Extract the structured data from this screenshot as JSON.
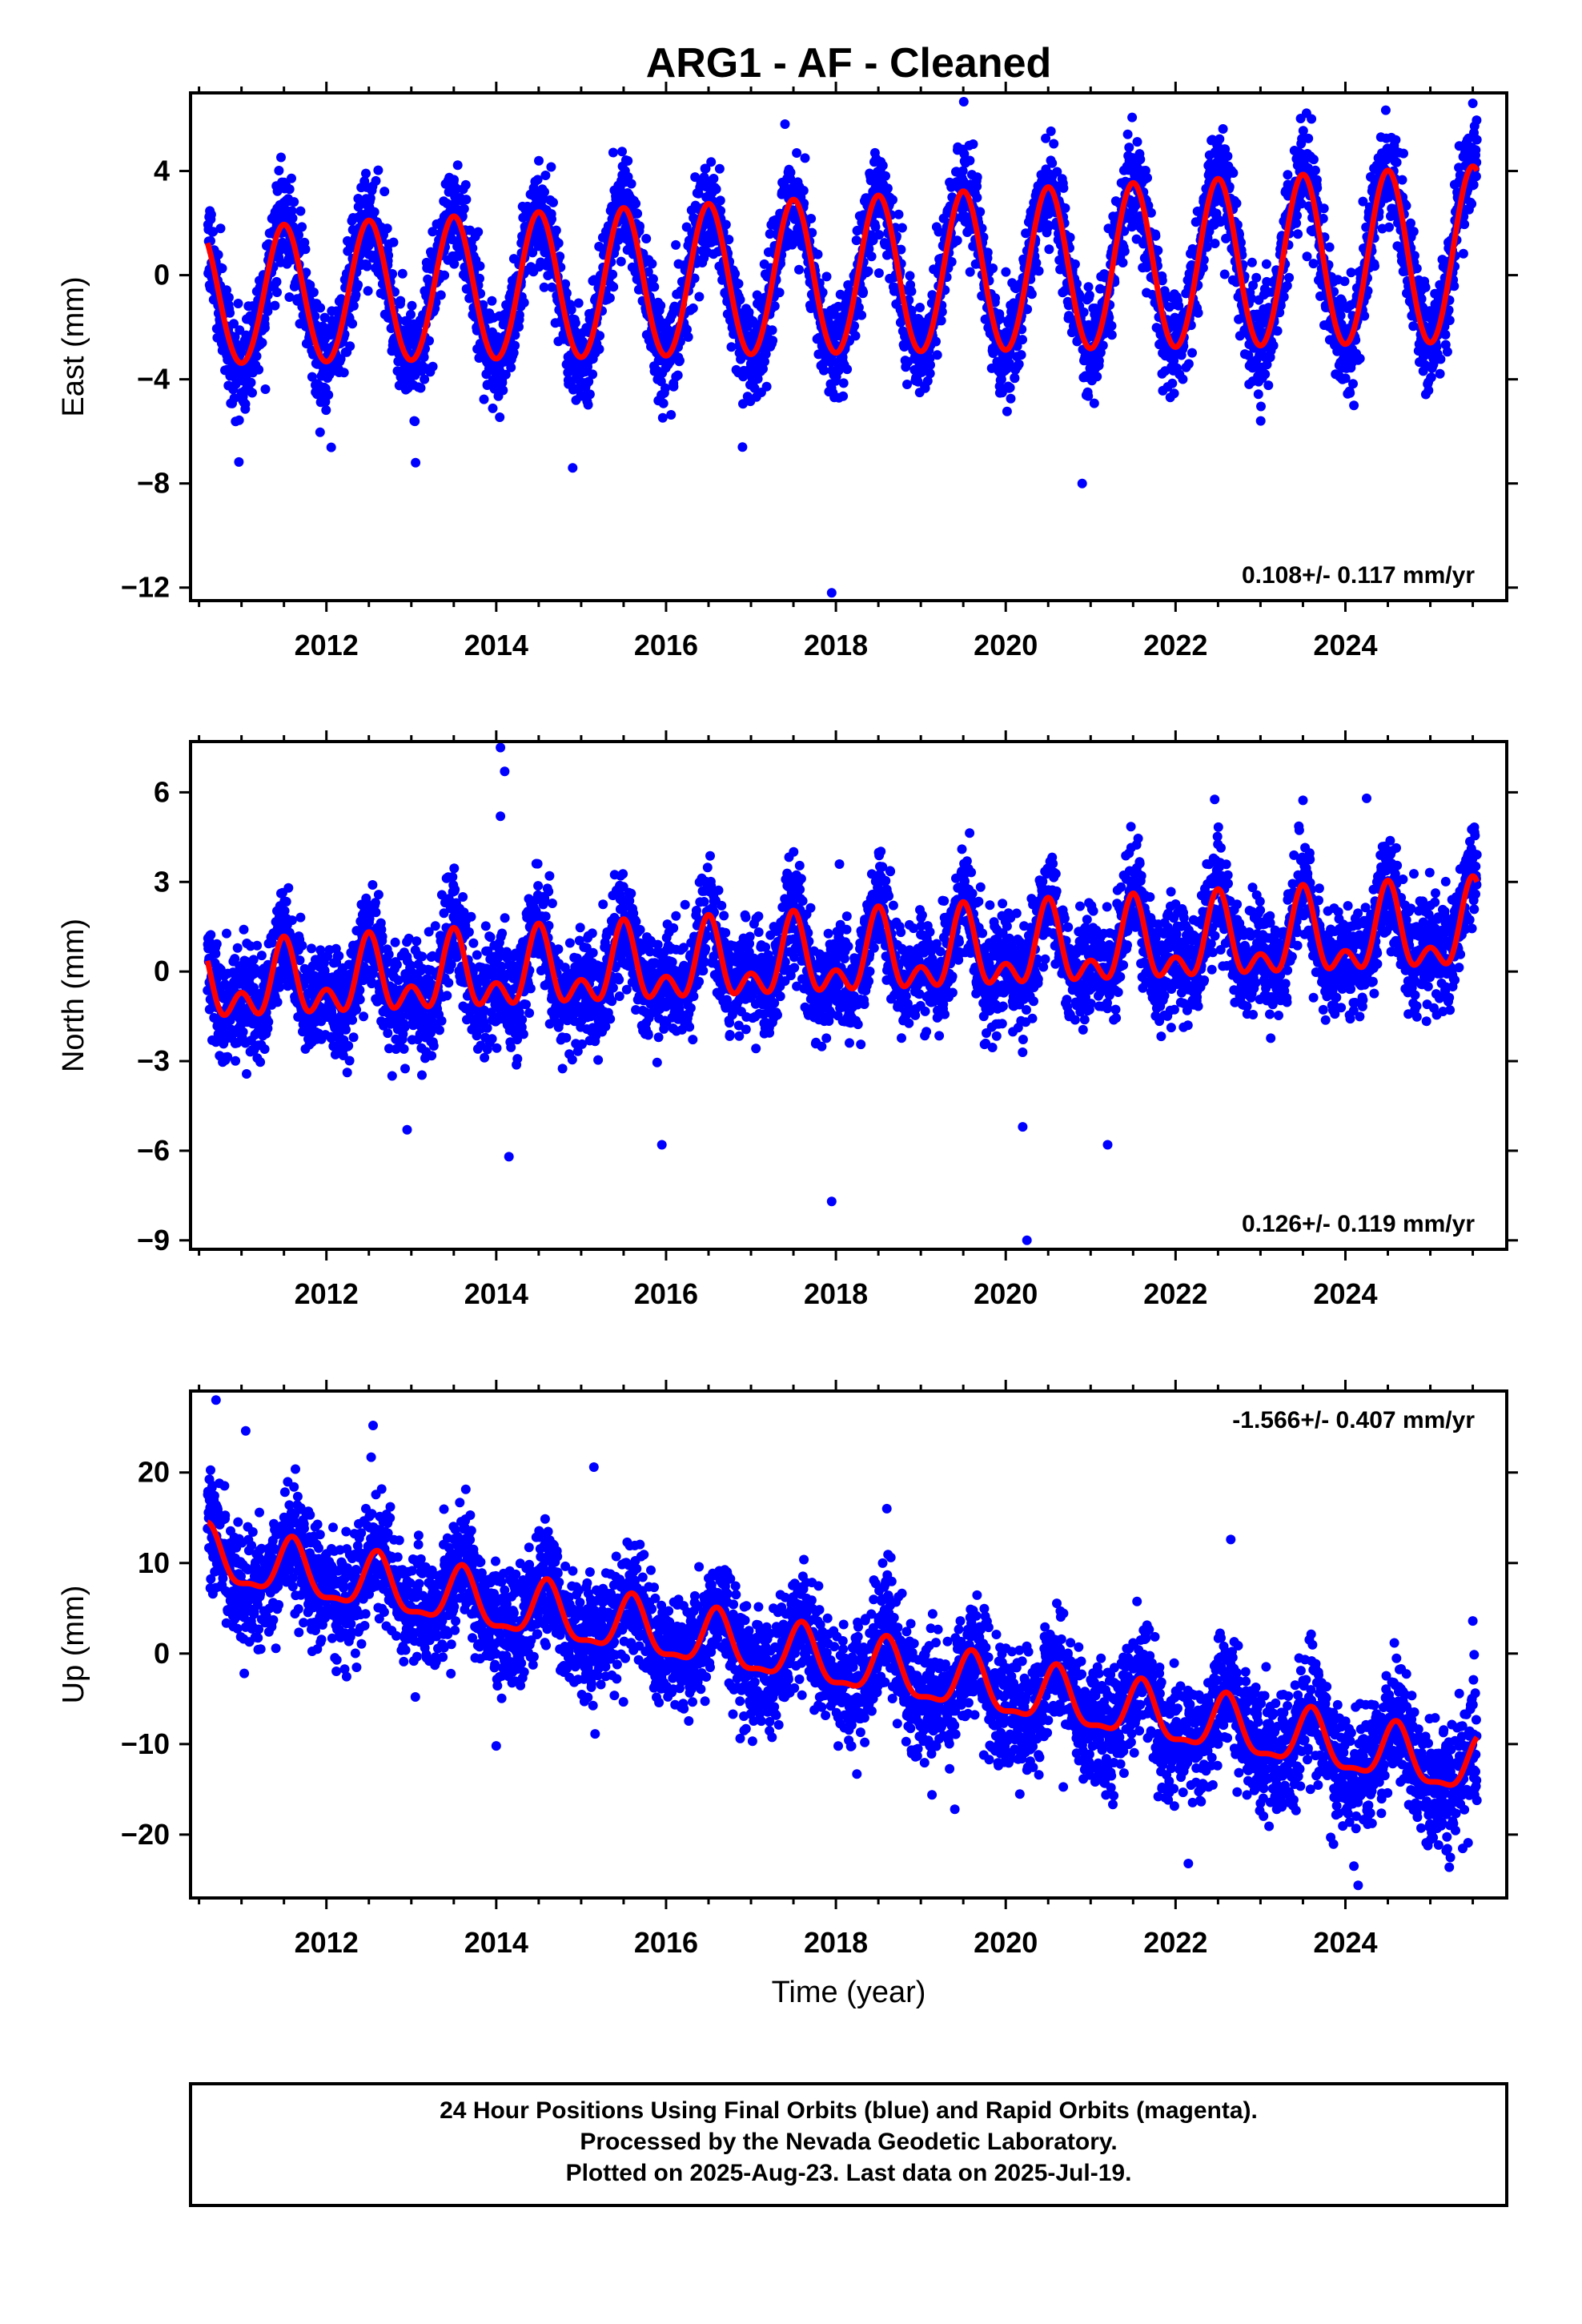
{
  "title": "ARG1  - AF - Cleaned",
  "colors": {
    "points": "#0000ff",
    "fit": "#ff0000",
    "axes": "#000000",
    "background": "#ffffff"
  },
  "chart_data": [
    {
      "id": "east",
      "type": "scatter",
      "title": "",
      "xlabel": "",
      "ylabel": "East (mm)",
      "xlim": [
        2010.4,
        2025.9
      ],
      "ylim": [
        -12.5,
        7
      ],
      "xticks": [
        2012,
        2014,
        2016,
        2018,
        2020,
        2022,
        2024
      ],
      "yticks": [
        4,
        0,
        -4,
        -8,
        -12
      ],
      "rate_text": "0.108+/- 0.117 mm/yr",
      "rate_position": "bottom-right",
      "series": [
        {
          "kind": "points",
          "x_start": 2010.6,
          "x_end": 2025.55,
          "noise_sd": 0.95
        },
        {
          "kind": "fit",
          "offset": -0.9,
          "trend_per_year": 0.108,
          "annual_amplitude": 2.6,
          "semiannual_amplitude": 0.1,
          "annual_peak_frac": 0.5,
          "amp_growth_per_year": 0.02
        }
      ],
      "outliers": [
        [
          2013.05,
          -7.2
        ],
        [
          2014.9,
          -7.4
        ],
        [
          2017.4,
          5.8
        ],
        [
          2017.95,
          -12.2
        ],
        [
          2020.9,
          -8.0
        ],
        [
          2023.6,
          6.0
        ],
        [
          2025.5,
          6.6
        ],
        [
          2016.9,
          -6.6
        ],
        [
          2024.1,
          -5.0
        ]
      ]
    },
    {
      "id": "north",
      "type": "scatter",
      "title": "",
      "xlabel": "",
      "ylabel": "North (mm)",
      "xlim": [
        2010.4,
        2025.9
      ],
      "ylim": [
        -9.3,
        7.7
      ],
      "xticks": [
        2012,
        2014,
        2016,
        2018,
        2020,
        2022,
        2024
      ],
      "yticks": [
        6,
        3,
        0,
        -3,
        -6,
        -9
      ],
      "rate_text": "0.126+/- 0.119 mm/yr",
      "rate_position": "bottom-right",
      "series": [
        {
          "kind": "points",
          "x_start": 2010.6,
          "x_end": 2025.55,
          "noise_sd": 0.9
        },
        {
          "kind": "fit",
          "offset": -0.6,
          "trend_per_year": 0.126,
          "annual_amplitude": 0.9,
          "semiannual_amplitude": 0.75,
          "annual_peak_frac": 0.5,
          "amp_growth_per_year": 0.02
        }
      ],
      "outliers": [
        [
          2014.05,
          7.5
        ],
        [
          2014.1,
          6.7
        ],
        [
          2014.05,
          5.2
        ],
        [
          2014.15,
          -6.2
        ],
        [
          2017.95,
          -7.7
        ],
        [
          2020.25,
          -9.0
        ],
        [
          2020.2,
          -5.2
        ],
        [
          2021.2,
          -5.8
        ],
        [
          2024.25,
          5.8
        ],
        [
          2012.95,
          -5.3
        ],
        [
          2015.95,
          -5.8
        ]
      ]
    },
    {
      "id": "up",
      "type": "scatter",
      "title": "",
      "xlabel": "Time (year)",
      "ylabel": "Up (mm)",
      "xlim": [
        2010.4,
        2025.9
      ],
      "ylim": [
        -27,
        29
      ],
      "xticks": [
        2012,
        2014,
        2016,
        2018,
        2020,
        2022,
        2024
      ],
      "yticks": [
        20,
        10,
        0,
        -10,
        -20
      ],
      "rate_text": "-1.566+/- 0.407 mm/yr",
      "rate_position": "top-right",
      "series": [
        {
          "kind": "points",
          "x_start": 2010.6,
          "x_end": 2025.55,
          "noise_sd": 3.2
        },
        {
          "kind": "fit",
          "offset": 10.5,
          "trend_per_year": -1.566,
          "annual_amplitude": 3.0,
          "semiannual_amplitude": 1.0,
          "annual_peak_frac": 0.6,
          "amp_growth_per_year": 0.0
        }
      ],
      "outliers": [
        [
          2010.7,
          28.0
        ],
        [
          2012.55,
          25.2
        ],
        [
          2011.05,
          24.6
        ],
        [
          2015.15,
          20.6
        ],
        [
          2014.0,
          -10.2
        ],
        [
          2022.15,
          -23.2
        ],
        [
          2024.15,
          -25.6
        ],
        [
          2025.5,
          3.6
        ],
        [
          2019.4,
          -17.2
        ],
        [
          2022.65,
          12.6
        ],
        [
          2018.6,
          16.0
        ]
      ]
    }
  ],
  "footer": {
    "line1": "24 Hour Positions Using Final Orbits (blue) and Rapid Orbits (magenta).",
    "line2": "Processed by the Nevada Geodetic Laboratory.",
    "line3": "Plotted on 2025-Aug-23. Last data on 2025-Jul-19."
  }
}
